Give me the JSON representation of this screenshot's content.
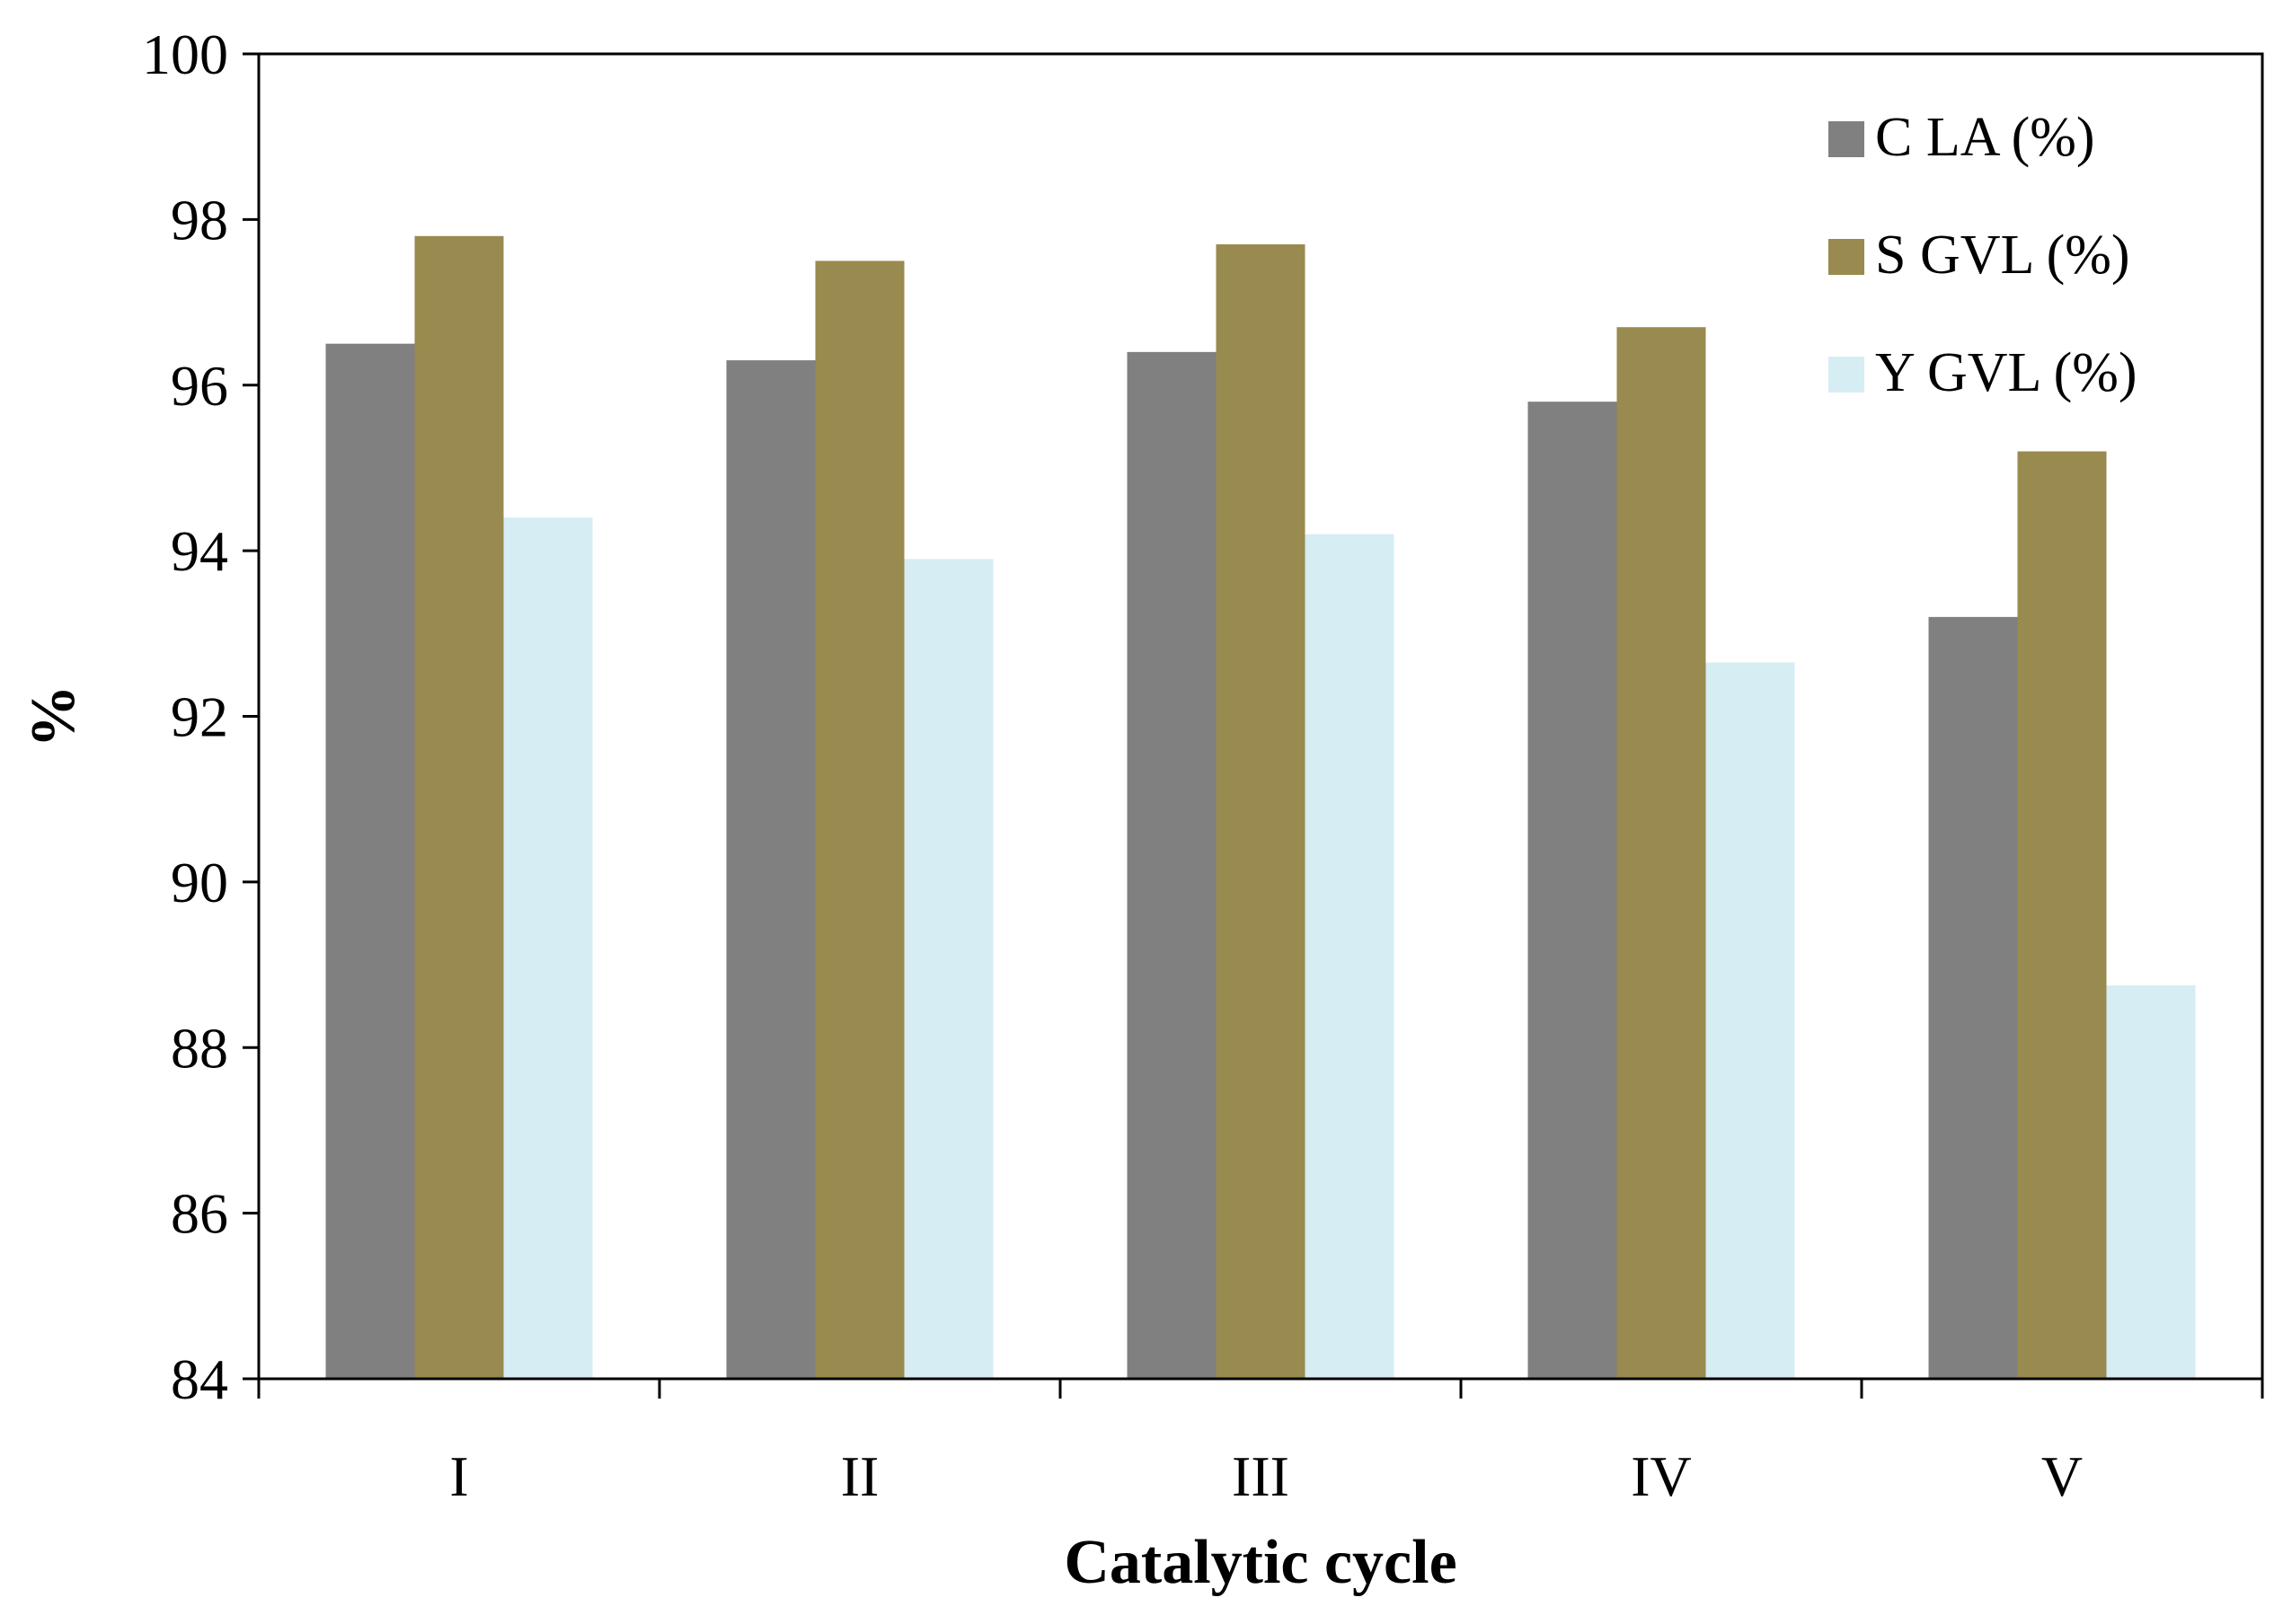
{
  "chart_data": {
    "type": "bar",
    "title": "",
    "xlabel": "Catalytic cycle",
    "ylabel": "%",
    "categories": [
      "I",
      "II",
      "III",
      "IV",
      "V"
    ],
    "ylim": [
      84,
      100
    ],
    "yticks": [
      84,
      86,
      88,
      90,
      92,
      94,
      96,
      98,
      100
    ],
    "grid": false,
    "legend_position": "top-right",
    "series": [
      {
        "name": "C LA (%)",
        "color": "#808080",
        "values": [
          96.5,
          96.3,
          96.4,
          95.8,
          93.2
        ]
      },
      {
        "name": "S GVL (%)",
        "color": "#998a4f",
        "values": [
          97.8,
          97.5,
          97.7,
          96.7,
          95.2
        ]
      },
      {
        "name": "Y GVL (%)",
        "color": "#d5edf3",
        "values": [
          94.4,
          93.9,
          94.2,
          92.65,
          88.75
        ]
      }
    ]
  }
}
